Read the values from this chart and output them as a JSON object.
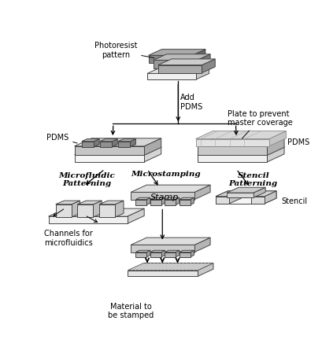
{
  "bg_color": "#ffffff",
  "colors": {
    "dark_gray": "#666666",
    "mid_gray": "#999999",
    "light_gray": "#bbbbbb",
    "very_light": "#e8e8e8",
    "white_box": "#f2f2f2",
    "edge": "#444444",
    "plate_color": "#d4d4d4",
    "stamp_color": "#c8c8c8",
    "substrate": "#eeeeee"
  },
  "labels": {
    "photoresist": "Photoresist\npattern",
    "add_pdms": "Add\nPDMS",
    "pdms_left": "PDMS",
    "pdms_right": "PDMS",
    "plate_prevent": "Plate to prevent\nmaster coverage",
    "microfluidic": "Microfluidic\nPatterning",
    "microstamping": "Microstamping",
    "stencil_patterning": "Stencil\nPatterning",
    "channels": "Channels for\nmicrofluidics",
    "stamp": "Stamp",
    "stencil": "Stencil",
    "material": "Material to\nbe stamped"
  }
}
